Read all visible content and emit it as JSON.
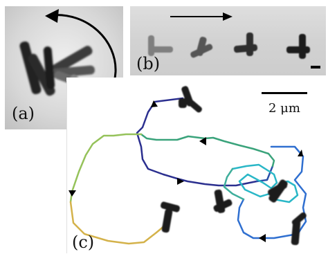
{
  "figure": {
    "panels": [
      {
        "id": "a",
        "label": "(a)"
      },
      {
        "id": "b",
        "label": "(b)"
      },
      {
        "id": "c",
        "label": "(c)"
      }
    ],
    "scalebar_c_label": "2 μm"
  },
  "colors": {
    "micrograph_light": "#d9d9d9",
    "micrograph_dark": "#1a1a1a",
    "trajectory_start": "#2b2f8f",
    "trajectory_mid": "#8dc25a",
    "trajectory_end": "#d4b24a",
    "trajectory_cyan": "#2ab7c7",
    "trajectory_blue": "#2f6fd0"
  }
}
